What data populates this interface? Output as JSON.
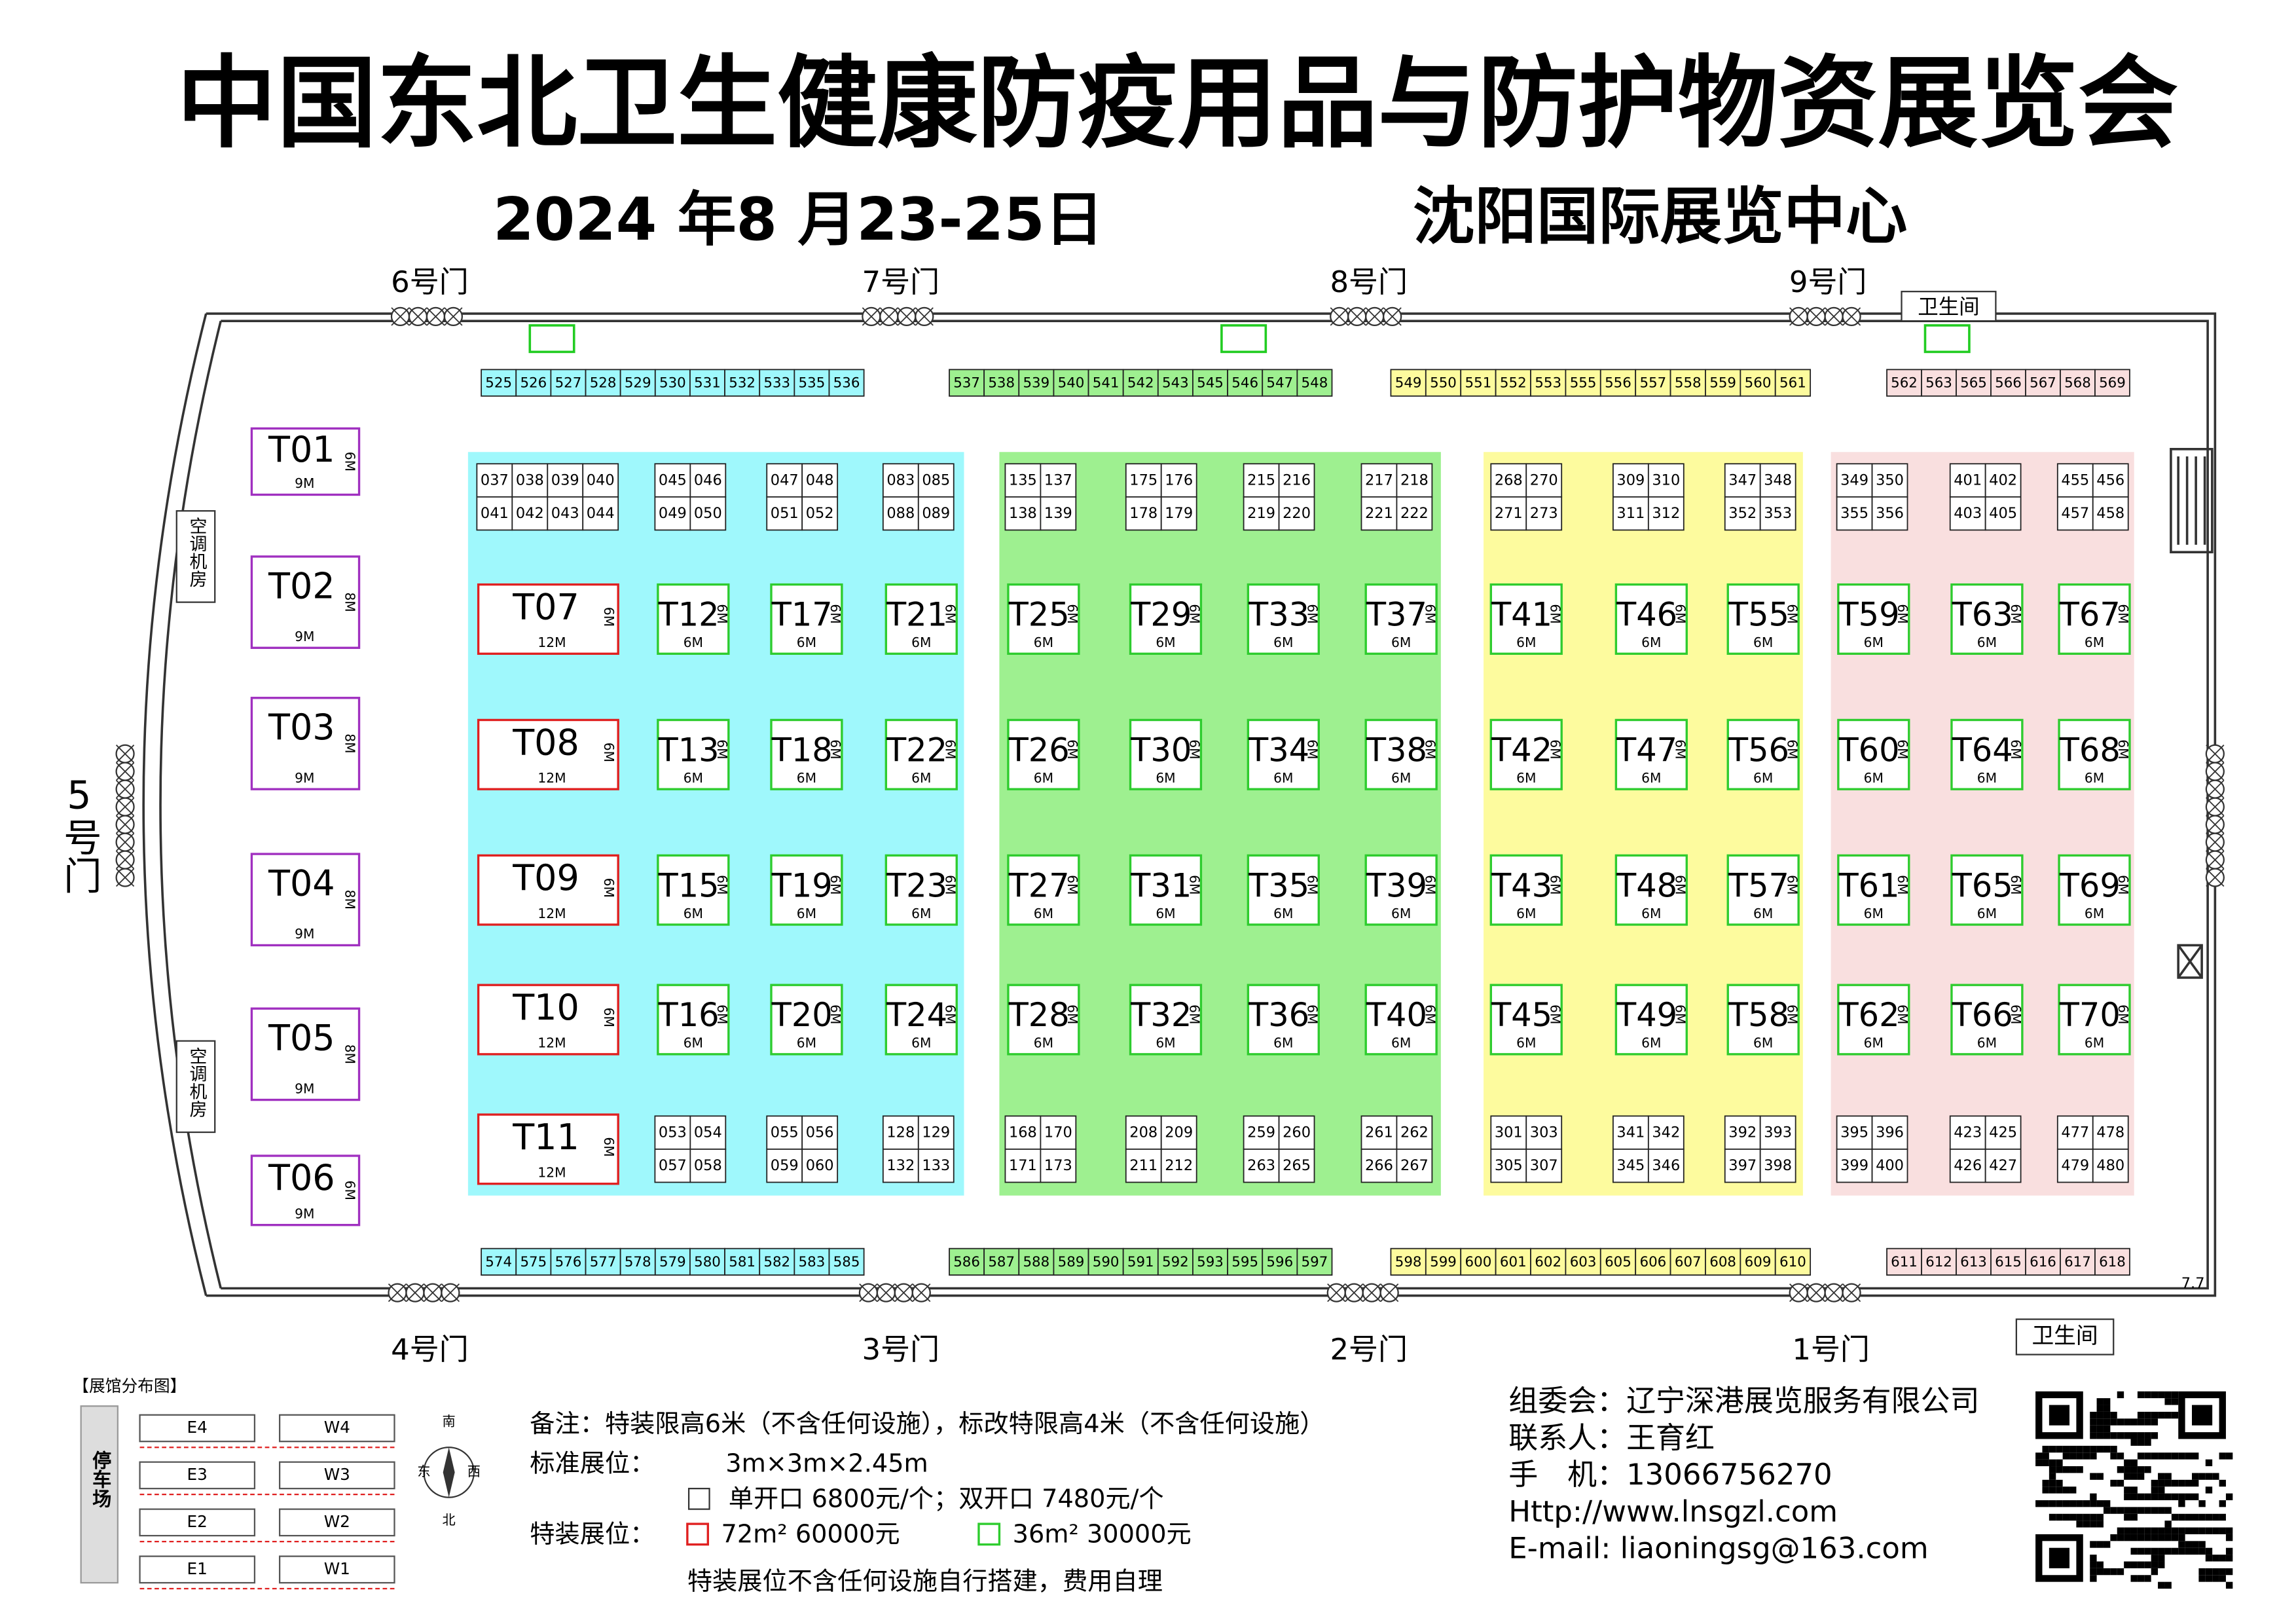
{
  "header": {
    "title": "中国东北卫生健康防疫用品与防护物资展览会",
    "date": "2024 年8 月23-25日",
    "venue": "沈阳国际展览中心"
  },
  "gates": {
    "top": [
      "6号门",
      "7号门",
      "8号门",
      "9号门"
    ],
    "bottom": [
      "4号门",
      "3号门",
      "2号门",
      "1号门"
    ],
    "west": "5号门"
  },
  "facilities": {
    "restrooms": [
      "卫生间",
      "卫生间"
    ],
    "ac_rooms": [
      "空调机房",
      "空调机房"
    ],
    "marker": "7.7"
  },
  "special_booths": {
    "purple": [
      {
        "label": "T01",
        "width": "9M",
        "depth": "6M"
      },
      {
        "label": "T02",
        "width": "9M",
        "depth": "8M"
      },
      {
        "label": "T03",
        "width": "9M",
        "depth": "8M"
      },
      {
        "label": "T04",
        "width": "9M",
        "depth": "8M"
      },
      {
        "label": "T05",
        "width": "9M",
        "depth": "8M"
      },
      {
        "label": "T06",
        "width": "9M",
        "depth": "6M"
      }
    ],
    "red": [
      {
        "label": "T07",
        "width": "12M",
        "depth": "6M"
      },
      {
        "label": "T08",
        "width": "12M",
        "depth": "6M"
      },
      {
        "label": "T09",
        "width": "12M",
        "depth": "6M"
      },
      {
        "label": "T10",
        "width": "12M",
        "depth": "6M"
      },
      {
        "label": "T11",
        "width": "12M",
        "depth": "6M"
      }
    ]
  },
  "zones": [
    {
      "color": "#9ff8fc",
      "top_row": [
        "525",
        "526",
        "527",
        "528",
        "529",
        "530",
        "531",
        "532",
        "533",
        "535",
        "536"
      ],
      "bottom_row": [
        "574",
        "575",
        "576",
        "577",
        "578",
        "579",
        "580",
        "581",
        "582",
        "583",
        "585"
      ],
      "top_blocks": [
        [
          [
            "037",
            "038",
            "039",
            "040"
          ],
          [
            "041",
            "042",
            "043",
            "044"
          ]
        ],
        [
          [
            "045",
            "046"
          ],
          [
            "049",
            "050"
          ]
        ],
        [
          [
            "047",
            "048"
          ],
          [
            "051",
            "052"
          ]
        ],
        [
          [
            "083",
            "085"
          ],
          [
            "088",
            "089"
          ]
        ]
      ],
      "bottom_blocks": [
        [
          [
            "053",
            "054"
          ],
          [
            "057",
            "058"
          ]
        ],
        [
          [
            "055",
            "056"
          ],
          [
            "059",
            "060"
          ]
        ],
        [
          [
            "128",
            "129"
          ],
          [
            "132",
            "133"
          ]
        ]
      ],
      "t_columns": [
        [
          {
            "label": "T12",
            "width": "6M",
            "depth": "6M"
          },
          {
            "label": "T13",
            "width": "6M",
            "depth": "6M"
          },
          {
            "label": "T15",
            "width": "6M",
            "depth": "6M"
          },
          {
            "label": "T16",
            "width": "6M",
            "depth": "6M"
          }
        ],
        [
          {
            "label": "T17",
            "width": "6M",
            "depth": "6M"
          },
          {
            "label": "T18",
            "width": "6M",
            "depth": "6M"
          },
          {
            "label": "T19",
            "width": "6M",
            "depth": "6M"
          },
          {
            "label": "T20",
            "width": "6M",
            "depth": "6M"
          }
        ],
        [
          {
            "label": "T21",
            "width": "6M",
            "depth": "6M"
          },
          {
            "label": "T22",
            "width": "6M",
            "depth": "6M"
          },
          {
            "label": "T23",
            "width": "6M",
            "depth": "6M"
          },
          {
            "label": "T24",
            "width": "6M",
            "depth": "6M"
          }
        ]
      ]
    },
    {
      "color": "#9ef090",
      "top_row": [
        "537",
        "538",
        "539",
        "540",
        "541",
        "542",
        "543",
        "545",
        "546",
        "547",
        "548"
      ],
      "bottom_row": [
        "586",
        "587",
        "588",
        "589",
        "590",
        "591",
        "592",
        "593",
        "595",
        "596",
        "597"
      ],
      "top_blocks": [
        [
          [
            "135",
            "137"
          ],
          [
            "138",
            "139"
          ]
        ],
        [
          [
            "175",
            "176"
          ],
          [
            "178",
            "179"
          ]
        ],
        [
          [
            "215",
            "216"
          ],
          [
            "219",
            "220"
          ]
        ],
        [
          [
            "217",
            "218"
          ],
          [
            "221",
            "222"
          ]
        ]
      ],
      "bottom_blocks": [
        [
          [
            "168",
            "170"
          ],
          [
            "171",
            "173"
          ]
        ],
        [
          [
            "208",
            "209"
          ],
          [
            "211",
            "212"
          ]
        ],
        [
          [
            "259",
            "260"
          ],
          [
            "263",
            "265"
          ]
        ],
        [
          [
            "261",
            "262"
          ],
          [
            "266",
            "267"
          ]
        ]
      ],
      "t_columns": [
        [
          {
            "label": "T25",
            "width": "6M",
            "depth": "6M"
          },
          {
            "label": "T26",
            "width": "6M",
            "depth": "6M"
          },
          {
            "label": "T27",
            "width": "6M",
            "depth": "6M"
          },
          {
            "label": "T28",
            "width": "6M",
            "depth": "6M"
          }
        ],
        [
          {
            "label": "T29",
            "width": "6M",
            "depth": "6M"
          },
          {
            "label": "T30",
            "width": "6M",
            "depth": "6M"
          },
          {
            "label": "T31",
            "width": "6M",
            "depth": "6M"
          },
          {
            "label": "T32",
            "width": "6M",
            "depth": "6M"
          }
        ],
        [
          {
            "label": "T33",
            "width": "6M",
            "depth": "6M"
          },
          {
            "label": "T34",
            "width": "6M",
            "depth": "6M"
          },
          {
            "label": "T35",
            "width": "6M",
            "depth": "6M"
          },
          {
            "label": "T36",
            "width": "6M",
            "depth": "6M"
          }
        ],
        [
          {
            "label": "T37",
            "width": "6M",
            "depth": "6M"
          },
          {
            "label": "T38",
            "width": "6M",
            "depth": "6M"
          },
          {
            "label": "T39",
            "width": "6M",
            "depth": "6M"
          },
          {
            "label": "T40",
            "width": "6M",
            "depth": "6M"
          }
        ]
      ]
    },
    {
      "color": "#fdfb9e",
      "top_row": [
        "549",
        "550",
        "551",
        "552",
        "553",
        "555",
        "556",
        "557",
        "558",
        "559",
        "560",
        "561"
      ],
      "bottom_row": [
        "598",
        "599",
        "600",
        "601",
        "602",
        "603",
        "605",
        "606",
        "607",
        "608",
        "609",
        "610"
      ],
      "top_blocks": [
        [
          [
            "268",
            "270"
          ],
          [
            "271",
            "273"
          ]
        ],
        [
          [
            "309",
            "310"
          ],
          [
            "311",
            "312"
          ]
        ],
        [
          [
            "347",
            "348"
          ],
          [
            "352",
            "353"
          ]
        ]
      ],
      "bottom_blocks": [
        [
          [
            "301",
            "303"
          ],
          [
            "305",
            "307"
          ]
        ],
        [
          [
            "341",
            "342"
          ],
          [
            "345",
            "346"
          ]
        ],
        [
          [
            "392",
            "393"
          ],
          [
            "397",
            "398"
          ]
        ]
      ],
      "t_columns": [
        [
          {
            "label": "T41",
            "width": "6M",
            "depth": "6M"
          },
          {
            "label": "T42",
            "width": "6M",
            "depth": "6M"
          },
          {
            "label": "T43",
            "width": "6M",
            "depth": "6M"
          },
          {
            "label": "T45",
            "width": "6M",
            "depth": "6M"
          }
        ],
        [
          {
            "label": "T46",
            "width": "6M",
            "depth": "6M"
          },
          {
            "label": "T47",
            "width": "6M",
            "depth": "6M"
          },
          {
            "label": "T48",
            "width": "6M",
            "depth": "6M"
          },
          {
            "label": "T49",
            "width": "6M",
            "depth": "6M"
          }
        ],
        [
          {
            "label": "T55",
            "width": "6M",
            "depth": "6M"
          },
          {
            "label": "T56",
            "width": "6M",
            "depth": "6M"
          },
          {
            "label": "T57",
            "width": "6M",
            "depth": "6M"
          },
          {
            "label": "T58",
            "width": "6M",
            "depth": "6M"
          }
        ]
      ]
    },
    {
      "color": "#f9dfdf",
      "top_row": [
        "562",
        "563",
        "565",
        "566",
        "567",
        "568",
        "569"
      ],
      "bottom_row": [
        "611",
        "612",
        "613",
        "615",
        "616",
        "617",
        "618"
      ],
      "top_blocks": [
        [
          [
            "349",
            "350"
          ],
          [
            "355",
            "356"
          ]
        ],
        [
          [
            "401",
            "402"
          ],
          [
            "403",
            "405"
          ]
        ],
        [
          [
            "455",
            "456"
          ],
          [
            "457",
            "458"
          ]
        ]
      ],
      "bottom_blocks": [
        [
          [
            "395",
            "396"
          ],
          [
            "399",
            "400"
          ]
        ],
        [
          [
            "423",
            "425"
          ],
          [
            "426",
            "427"
          ]
        ],
        [
          [
            "477",
            "478"
          ],
          [
            "479",
            "480"
          ]
        ]
      ],
      "t_columns": [
        [
          {
            "label": "T59",
            "width": "6M",
            "depth": "6M"
          },
          {
            "label": "T60",
            "width": "6M",
            "depth": "6M"
          },
          {
            "label": "T61",
            "width": "6M",
            "depth": "6M"
          },
          {
            "label": "T62",
            "width": "6M",
            "depth": "6M"
          }
        ],
        [
          {
            "label": "T63",
            "width": "6M",
            "depth": "6M"
          },
          {
            "label": "T64",
            "width": "6M",
            "depth": "6M"
          },
          {
            "label": "T65",
            "width": "6M",
            "depth": "6M"
          },
          {
            "label": "T66",
            "width": "6M",
            "depth": "6M"
          }
        ],
        [
          {
            "label": "T67",
            "width": "6M",
            "depth": "6M"
          },
          {
            "label": "T68",
            "width": "6M",
            "depth": "6M"
          },
          {
            "label": "T69",
            "width": "6M",
            "depth": "6M"
          },
          {
            "label": "T70",
            "width": "6M",
            "depth": "6M"
          }
        ]
      ]
    }
  ],
  "hall_map": {
    "title": "【展馆分布图】",
    "parking": "停车场",
    "halls_east": [
      "E4",
      "E3",
      "E2",
      "E1"
    ],
    "halls_west": [
      "W4",
      "W3",
      "W2",
      "W1"
    ],
    "compass": [
      "南",
      "东",
      "西",
      "北"
    ]
  },
  "notes": {
    "height_limit": "备注：特装限高6米（不含任何设施），标改特限高4米（不含任何设施）",
    "standard_label": "标准展位：",
    "standard_size": "3m×3m×2.45m",
    "standard_price": "单开口 6800元/个；双开口 7480元/个",
    "special_label": "特装展位：",
    "special_large": "72m² 60000元",
    "special_small": "36m² 30000元",
    "special_note": "特装展位不含任何设施自行搭建，费用自理"
  },
  "contact": [
    "组委会：辽宁深港展览服务有限公司",
    "联系人：王育红",
    "手　机：13066756270",
    "Http://www.lnsgzl.com",
    "E-mail: liaoningsg@163.com"
  ]
}
